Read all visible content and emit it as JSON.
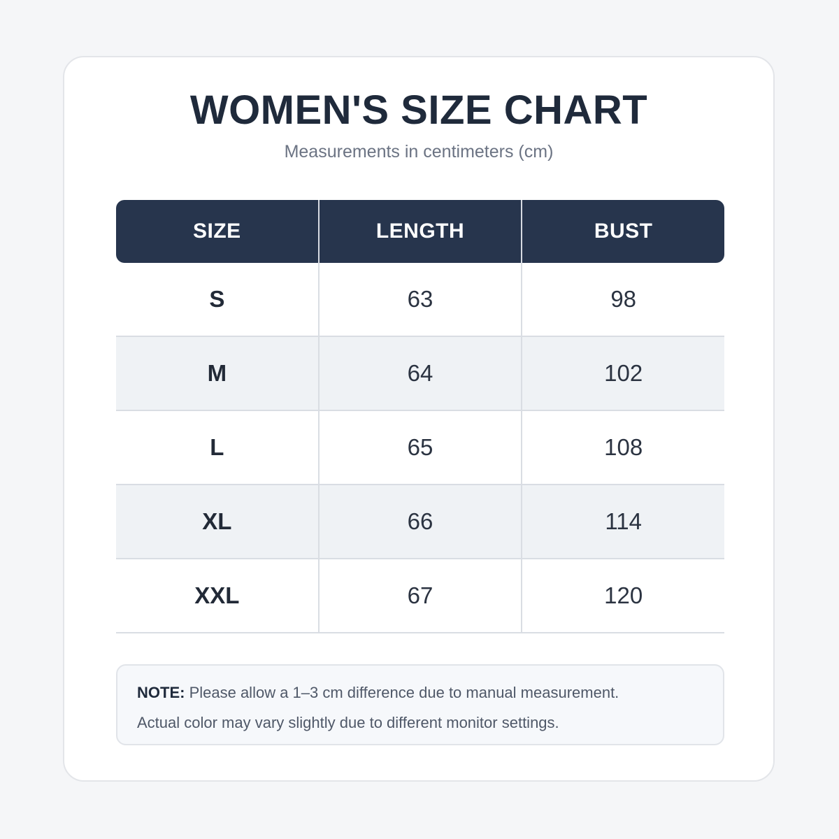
{
  "title": "WOMEN'S SIZE CHART",
  "subtitle": "Measurements in centimeters (cm)",
  "chart_data": {
    "type": "table",
    "columns": [
      "SIZE",
      "LENGTH",
      "BUST"
    ],
    "rows": [
      {
        "size": "S",
        "length": "63",
        "bust": "98"
      },
      {
        "size": "M",
        "length": "64",
        "bust": "102"
      },
      {
        "size": "L",
        "length": "65",
        "bust": "108"
      },
      {
        "size": "XL",
        "length": "66",
        "bust": "114"
      },
      {
        "size": "XXL",
        "length": "67",
        "bust": "120"
      }
    ]
  },
  "note": {
    "label": "NOTE:",
    "line1": " Please allow a 1–3 cm difference due to manual measurement.",
    "line2": "Actual color may vary slightly due to different monitor settings."
  },
  "colors": {
    "header_bg": "#27354d",
    "title": "#1f2a3b",
    "alt_row": "#eff2f5"
  }
}
